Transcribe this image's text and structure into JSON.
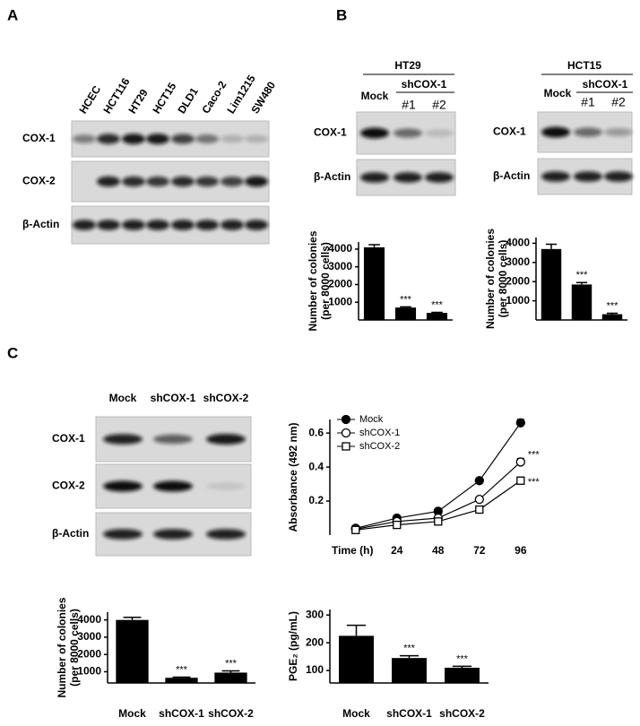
{
  "panels": [
    "A",
    "B",
    "C"
  ],
  "blots": {
    "a": {
      "lanes": [
        "HCEC",
        "HCT116",
        "HT29",
        "HCT15",
        "DLD1",
        "Caco-2",
        "Lim1215",
        "SW480"
      ],
      "rows": [
        "COX-1",
        "COX-2",
        "β-Actin"
      ]
    },
    "ht29": {
      "title": "HT29",
      "mock": "Mock",
      "group": "shCOX-1",
      "subs": [
        "#1",
        "#2"
      ],
      "rows": [
        "COX-1",
        "β-Actin"
      ]
    },
    "hct15": {
      "title": "HCT15",
      "mock": "Mock",
      "group": "shCOX-1",
      "subs": [
        "#1",
        "#2"
      ],
      "rows": [
        "COX-1",
        "β-Actin"
      ]
    },
    "c": {
      "lanes": [
        "Mock",
        "shCOX-1",
        "shCOX-2"
      ],
      "rows": [
        "COX-1",
        "COX-2",
        "β-Actin"
      ]
    }
  },
  "chart_data": [
    {
      "type": "bar",
      "ylabel": [
        "Number of colonies",
        "(per 8000 cells)"
      ],
      "values": [
        4100,
        700,
        400
      ],
      "errors": [
        150,
        40,
        30
      ],
      "annotations": [
        null,
        "***",
        "***"
      ],
      "color": "#000000",
      "ylim": [
        0,
        4400
      ],
      "yticks": [
        1000,
        2000,
        3000,
        4000
      ]
    },
    {
      "type": "bar",
      "ylabel": [
        "Number of colonies",
        "(per 8000 cells)"
      ],
      "values": [
        3700,
        1850,
        300
      ],
      "errors": [
        250,
        100,
        50
      ],
      "annotations": [
        null,
        "***",
        "***"
      ],
      "color": "#000000",
      "ylim": [
        0,
        4300
      ],
      "yticks": [
        1000,
        2000,
        3000,
        4000
      ]
    },
    {
      "type": "line",
      "ylabel": "Absorbance (492 nm)",
      "xlabel": "Time (h)",
      "x": [
        0,
        24,
        48,
        72,
        96
      ],
      "xlim": [
        -15,
        106
      ],
      "xticks": [
        24,
        48,
        72,
        96
      ],
      "ylim": [
        0,
        0.68
      ],
      "yticks": [
        0.2,
        0.4,
        0.6
      ],
      "legend": "top-left",
      "series": [
        {
          "name": "Mock",
          "color": "#000000",
          "marker": "circle",
          "fill": "#000000",
          "values": [
            0.04,
            0.1,
            0.14,
            0.32,
            0.66
          ],
          "errors": [
            null,
            null,
            null,
            null,
            0.02
          ],
          "annotations": [
            null,
            null,
            null,
            null,
            null
          ]
        },
        {
          "name": "shCOX-1",
          "color": "#000000",
          "marker": "circle",
          "fill": "#ffffff",
          "values": [
            0.035,
            0.08,
            0.1,
            0.21,
            0.43
          ],
          "errors": [
            null,
            null,
            null,
            null,
            0.02
          ],
          "annotations": [
            null,
            null,
            null,
            null,
            "***"
          ]
        },
        {
          "name": "shCOX-2",
          "color": "#000000",
          "marker": "square",
          "fill": "#ffffff",
          "values": [
            0.03,
            0.06,
            0.08,
            0.15,
            0.32
          ],
          "errors": [
            null,
            null,
            null,
            null,
            0.02
          ],
          "annotations": [
            null,
            null,
            null,
            null,
            "***"
          ]
        }
      ]
    },
    {
      "type": "bar",
      "ylabel": [
        "Number of colonies",
        "(per 8000 cells)"
      ],
      "categories": [
        "Mock",
        "shCOX-1",
        "shCOX-2"
      ],
      "values": [
        4000,
        650,
        950
      ],
      "errors": [
        150,
        40,
        100
      ],
      "annotations": [
        null,
        "***",
        "***"
      ],
      "color": "#000000",
      "ylim": [
        350,
        4450
      ],
      "yticks": [
        1000,
        2000,
        3000,
        4000
      ]
    },
    {
      "type": "bar",
      "ylabel": "PGE₂ (pg/mL)",
      "categories": [
        "Mock",
        "shCOX-1",
        "shCOX-2"
      ],
      "values": [
        225,
        145,
        110
      ],
      "errors": [
        38,
        8,
        5
      ],
      "annotations": [
        null,
        "***",
        "***"
      ],
      "color": "#000000",
      "ylim": [
        55,
        320
      ],
      "yticks": [
        100,
        200,
        300
      ]
    }
  ]
}
